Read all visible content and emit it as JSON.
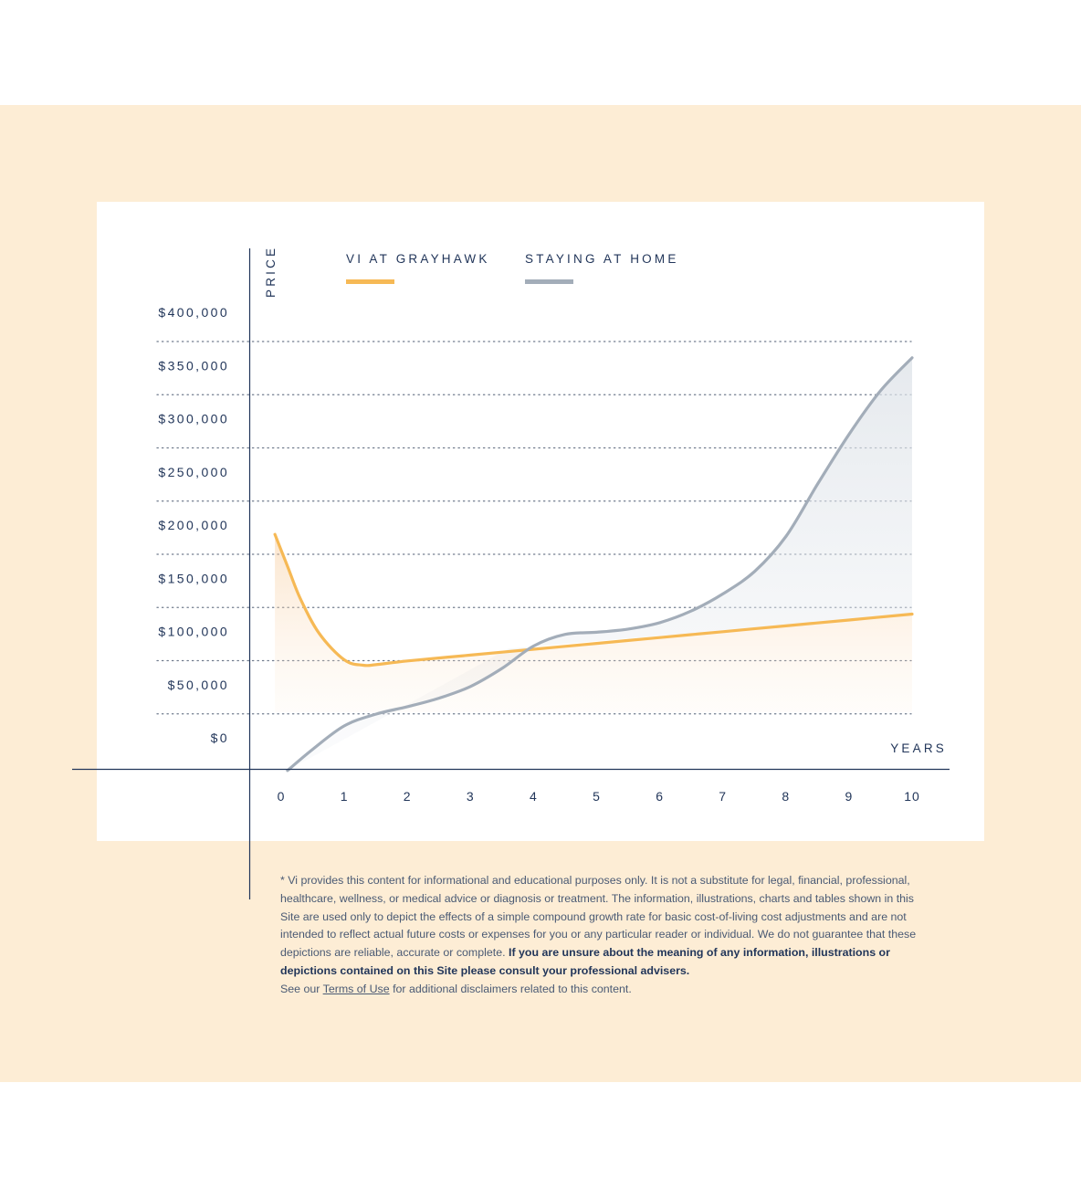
{
  "chart_data": {
    "type": "area",
    "title": "",
    "ylabel": "PRICE",
    "xlabel": "YEARS",
    "ylim": [
      0,
      400000
    ],
    "xlim": [
      0,
      10
    ],
    "y_ticks": [
      {
        "value": 0,
        "label": "$0"
      },
      {
        "value": 50000,
        "label": "$50,000"
      },
      {
        "value": 100000,
        "label": "$100,000"
      },
      {
        "value": 150000,
        "label": "$150,000"
      },
      {
        "value": 200000,
        "label": "$200,000"
      },
      {
        "value": 250000,
        "label": "$250,000"
      },
      {
        "value": 300000,
        "label": "$300,000"
      },
      {
        "value": 350000,
        "label": "$350,000"
      },
      {
        "value": 400000,
        "label": "$400,000"
      }
    ],
    "x_ticks": [
      {
        "value": 0,
        "label": "0"
      },
      {
        "value": 1,
        "label": "1"
      },
      {
        "value": 2,
        "label": "2"
      },
      {
        "value": 3,
        "label": "3"
      },
      {
        "value": 4,
        "label": "4"
      },
      {
        "value": 5,
        "label": "5"
      },
      {
        "value": 6,
        "label": "6"
      },
      {
        "value": 7,
        "label": "7"
      },
      {
        "value": 8,
        "label": "8"
      },
      {
        "value": 9,
        "label": "9"
      },
      {
        "value": 10,
        "label": "10"
      }
    ],
    "grid": "dotted-horizontal",
    "legend_position": "top",
    "series": [
      {
        "name": "VI AT GRAYHAWK",
        "color": "#f6b955",
        "x": [
          -0.1,
          0.1,
          0.3,
          0.6,
          1.0,
          1.3,
          1.5,
          2.0,
          3.0,
          4.0,
          5.0,
          6.0,
          7.0,
          8.0,
          9.0,
          10.0
        ],
        "values": [
          205000,
          175000,
          145000,
          112000,
          87000,
          82000,
          82500,
          86000,
          91500,
          97000,
          102500,
          108000,
          113500,
          119000,
          124500,
          130000
        ]
      },
      {
        "name": "STAYING AT HOME",
        "color": "#a3adb9",
        "x": [
          0.1,
          0.5,
          1.0,
          1.5,
          2.0,
          2.5,
          3.0,
          3.5,
          4.0,
          4.5,
          5.0,
          5.5,
          6.0,
          6.5,
          7.0,
          7.5,
          8.0,
          8.5,
          9.0,
          9.5,
          10.0
        ],
        "values": [
          -17000,
          3000,
          25000,
          36000,
          43000,
          51000,
          62000,
          79000,
          100000,
          111000,
          113000,
          116000,
          122000,
          133000,
          149000,
          170000,
          203000,
          252000,
          299000,
          340000,
          371000
        ]
      }
    ]
  },
  "disclaimer": {
    "text": "* Vi provides this content for informational and educational purposes only. It is not a substitute for legal, financial, professional, healthcare, wellness, or medical advice or diagnosis or treatment. The information, illustrations, charts and tables shown in this Site are used only to depict the effects of a simple compound growth rate for basic cost-of-living cost adjustments and are not intended to reflect actual future costs or expenses for you or any particular reader or individual. We do not guarantee that these depictions are reliable, accurate or complete.",
    "bold": "If you are unsure about the meaning of any information, illustrations or depictions contained on this Site please consult your professional advisers.",
    "see_prefix": "See our",
    "link": "Terms of Use",
    "see_suffix": "for additional disclaimers related to this content."
  },
  "colors": {
    "background_band": "#fdedd5",
    "axis": "#22365a",
    "text": "#22365a",
    "grid": "#6f7a8c"
  }
}
